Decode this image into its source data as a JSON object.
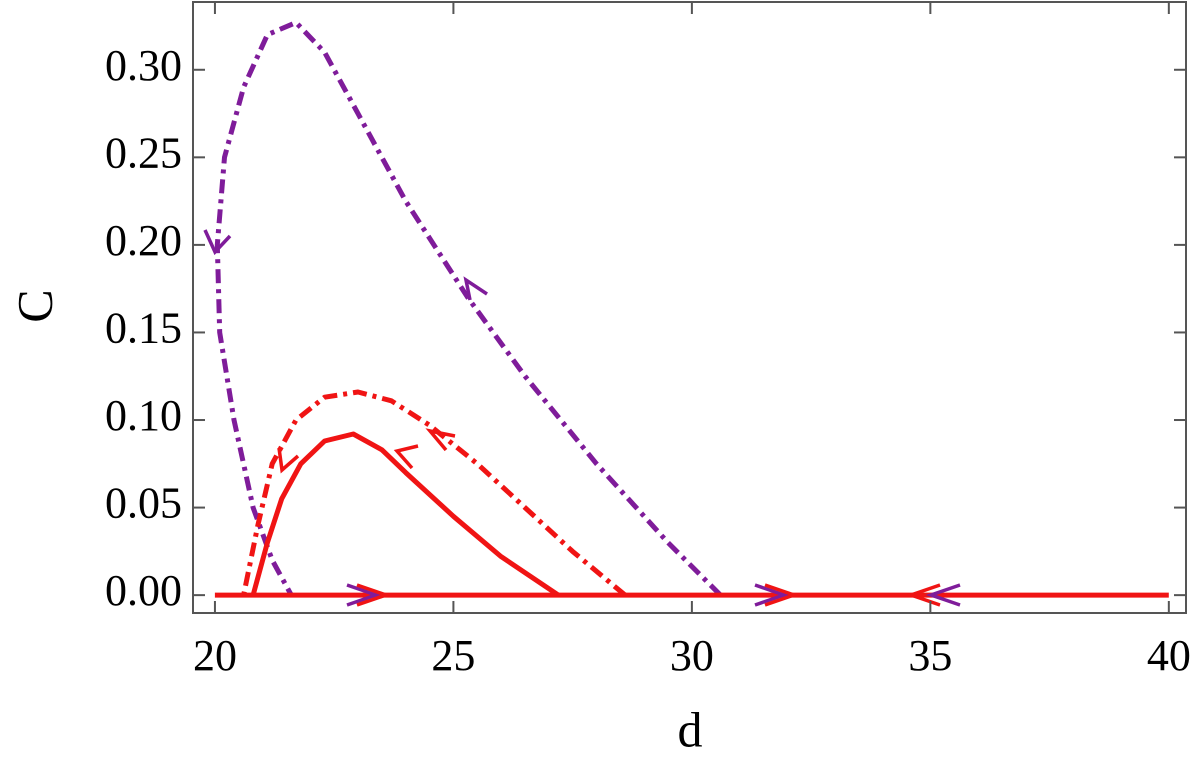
{
  "chart_data": {
    "type": "line",
    "x_label": "d",
    "y_label": "C",
    "xlim": [
      19.54,
      40.36
    ],
    "ylim": [
      -0.0102,
      0.3387
    ],
    "xticks": [
      20,
      25,
      30,
      35,
      40
    ],
    "yticks": [
      {
        "value": 0,
        "label": "0.00"
      },
      {
        "value": 0.05,
        "label": "0.05"
      },
      {
        "value": 0.1,
        "label": "0.10"
      },
      {
        "value": 0.15,
        "label": "0.15"
      },
      {
        "value": 0.2,
        "label": "0.20"
      },
      {
        "value": 0.25,
        "label": "0.25"
      },
      {
        "value": 0.3,
        "label": "0.30"
      }
    ],
    "grid": false,
    "series": [
      {
        "color": "#7f1c9a",
        "style": "dashdot",
        "x": [
          30.6,
          29.5,
          28,
          26.5,
          25.3,
          24,
          23,
          22.3,
          21.7,
          21.1,
          20.6,
          20.2,
          20.05,
          20.1,
          20.4,
          20.8,
          21.2,
          21.6
        ],
        "values": [
          0,
          0.03,
          0.075,
          0.125,
          0.17,
          0.225,
          0.275,
          0.31,
          0.327,
          0.32,
          0.29,
          0.25,
          0.2,
          0.15,
          0.1,
          0.05,
          0.02,
          0
        ]
      },
      {
        "color": "#f01414",
        "style": "dashdot",
        "x": [
          28.6,
          27.5,
          26.5,
          25.5,
          24.5,
          23.7,
          23,
          22.3,
          21.7,
          21.2,
          20.9,
          20.6
        ],
        "values": [
          0,
          0.025,
          0.05,
          0.075,
          0.097,
          0.111,
          0.116,
          0.113,
          0.1,
          0.075,
          0.04,
          0
        ]
      },
      {
        "color": "#f01414",
        "style": "solid",
        "x": [
          27.2,
          26,
          25,
          24,
          23.5,
          22.9,
          22.3,
          21.8,
          21.4,
          21.1,
          20.8
        ],
        "values": [
          0,
          0.022,
          0.045,
          0.07,
          0.083,
          0.092,
          0.088,
          0.075,
          0.055,
          0.03,
          0
        ]
      },
      {
        "color": "#f01414",
        "style": "solid",
        "x": [
          20,
          40
        ],
        "values": [
          0,
          0
        ]
      }
    ]
  }
}
